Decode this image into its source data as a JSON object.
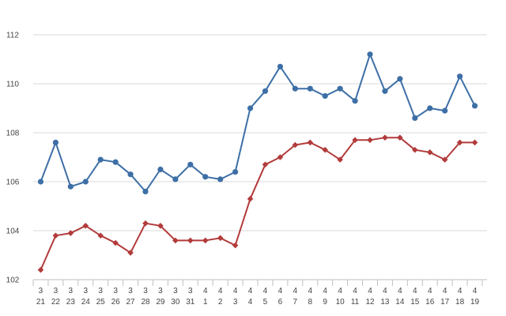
{
  "chart_data": {
    "type": "line",
    "title": "",
    "xlabel": "",
    "ylabel": "",
    "ylim": [
      102,
      112
    ],
    "yticks": [
      102,
      104,
      106,
      108,
      110,
      112
    ],
    "grid": true,
    "legend": "none",
    "categories": [
      [
        "3",
        "21"
      ],
      [
        "3",
        "22"
      ],
      [
        "3",
        "23"
      ],
      [
        "3",
        "24"
      ],
      [
        "3",
        "25"
      ],
      [
        "3",
        "26"
      ],
      [
        "3",
        "27"
      ],
      [
        "3",
        "28"
      ],
      [
        "3",
        "29"
      ],
      [
        "3",
        "30"
      ],
      [
        "3",
        "31"
      ],
      [
        "4",
        "1"
      ],
      [
        "4",
        "2"
      ],
      [
        "4",
        "3"
      ],
      [
        "4",
        "4"
      ],
      [
        "4",
        "5"
      ],
      [
        "4",
        "6"
      ],
      [
        "4",
        "7"
      ],
      [
        "4",
        "8"
      ],
      [
        "4",
        "9"
      ],
      [
        "4",
        "10"
      ],
      [
        "4",
        "11"
      ],
      [
        "4",
        "12"
      ],
      [
        "4",
        "13"
      ],
      [
        "4",
        "14"
      ],
      [
        "4",
        "15"
      ],
      [
        "4",
        "16"
      ],
      [
        "4",
        "17"
      ],
      [
        "4",
        "18"
      ],
      [
        "4",
        "19"
      ]
    ],
    "series": [
      {
        "color": "#3d6fa6",
        "marker": "circle",
        "values": [
          106.0,
          107.6,
          105.8,
          106.0,
          106.9,
          106.8,
          106.3,
          105.6,
          106.5,
          106.1,
          106.7,
          106.2,
          106.1,
          106.4,
          109.0,
          109.7,
          110.7,
          109.8,
          109.8,
          109.5,
          109.8,
          109.3,
          111.2,
          109.7,
          110.2,
          108.6,
          109.0,
          108.9,
          110.3,
          109.1
        ]
      },
      {
        "color": "#b23b3b",
        "marker": "diamond",
        "values": [
          102.4,
          103.8,
          103.9,
          104.2,
          103.8,
          103.5,
          103.1,
          104.3,
          104.2,
          103.6,
          103.6,
          103.6,
          103.7,
          103.4,
          105.3,
          106.7,
          107.0,
          107.5,
          107.6,
          107.3,
          106.9,
          107.7,
          107.7,
          107.8,
          107.8,
          107.3,
          107.2,
          106.9,
          107.6,
          107.6
        ]
      }
    ]
  }
}
